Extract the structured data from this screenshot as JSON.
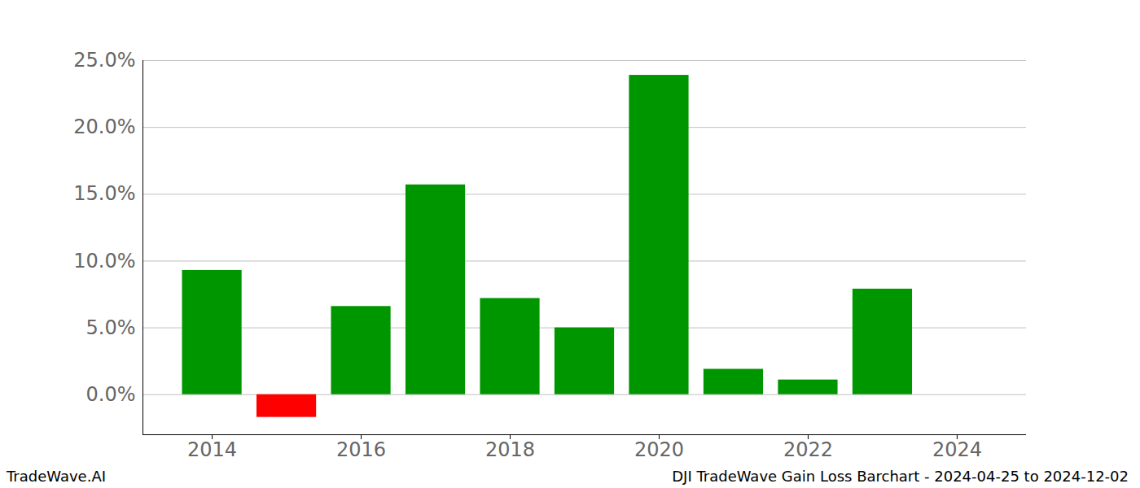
{
  "chart_data": {
    "type": "bar",
    "annotations": [
      "TradeWave.AI",
      "DJI TradeWave Gain Loss Barchart - 2024-04-25 to 2024-12-02"
    ],
    "x": [
      2014,
      2015,
      2016,
      2017,
      2018,
      2019,
      2020,
      2021,
      2022,
      2023
    ],
    "values": [
      9.3,
      -1.7,
      6.6,
      15.7,
      7.2,
      5.0,
      23.9,
      1.9,
      1.1,
      7.9
    ],
    "colors": [
      "#009600",
      "#ff0000",
      "#009600",
      "#009600",
      "#009600",
      "#009600",
      "#009600",
      "#009600",
      "#009600",
      "#009600"
    ],
    "xlim": [
      2013.07,
      2024.93
    ],
    "xticks": [
      2014,
      2016,
      2018,
      2020,
      2022,
      2024
    ],
    "ylim": [
      -3,
      25
    ],
    "yticks": [
      {
        "value": 0,
        "label": "0.0%"
      },
      {
        "value": 5,
        "label": "5.0%"
      },
      {
        "value": 10,
        "label": "10.0%"
      },
      {
        "value": 15,
        "label": "15.0%"
      },
      {
        "value": 20,
        "label": "20.0%"
      },
      {
        "value": 25,
        "label": "25.0%"
      }
    ],
    "grid": true
  }
}
